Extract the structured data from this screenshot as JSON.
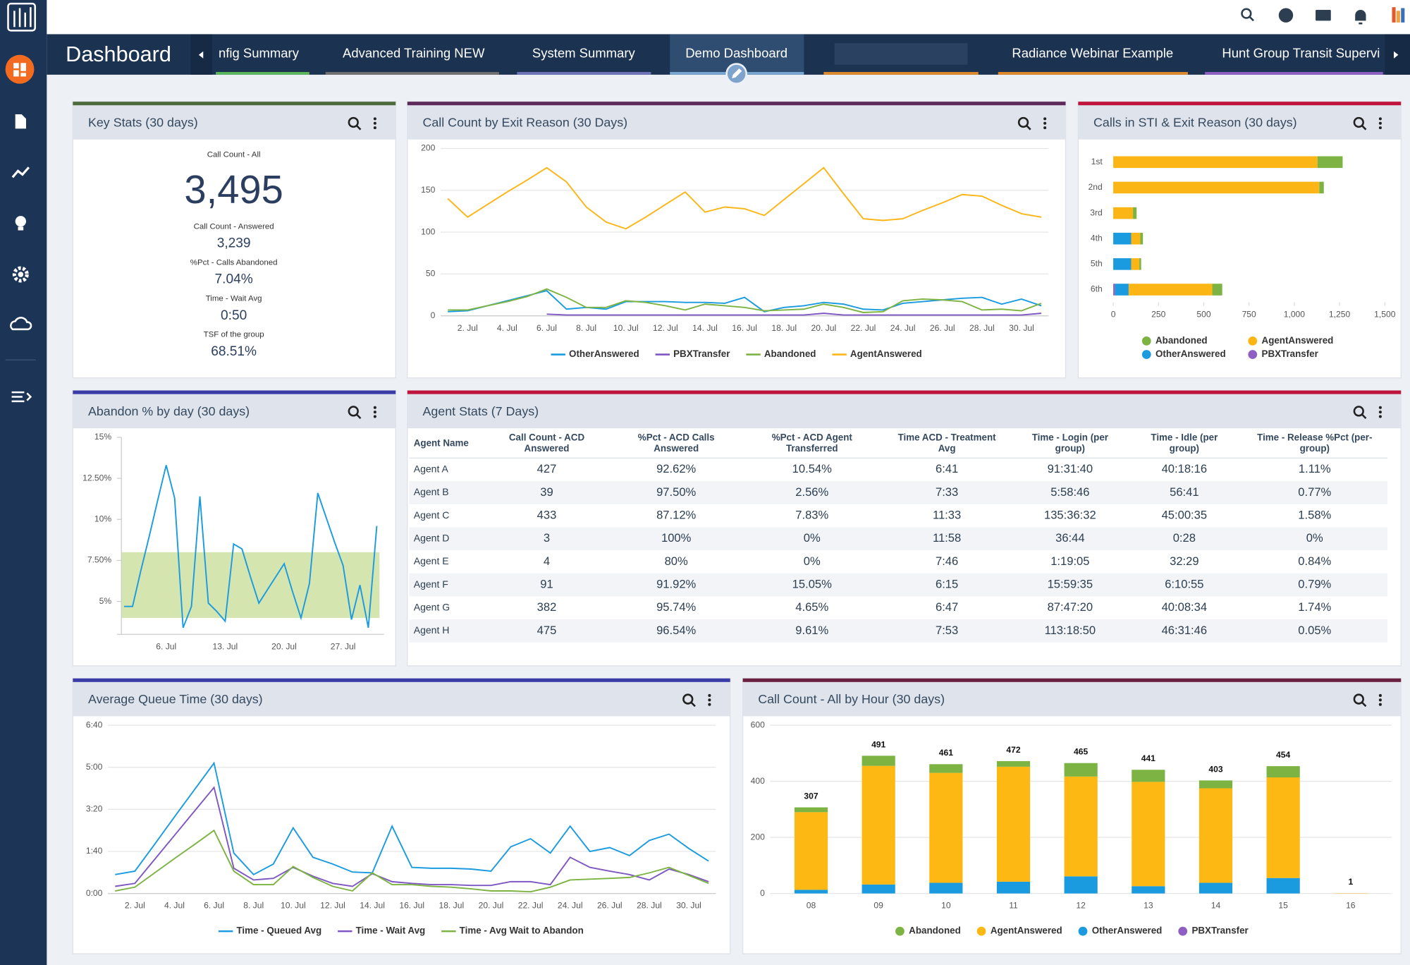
{
  "page_title": "Dashboard",
  "tabs": [
    {
      "label": "nfig Summary"
    },
    {
      "label": "Advanced Training NEW"
    },
    {
      "label": "System Summary"
    },
    {
      "label": "Demo Dashboard",
      "active": true
    },
    {
      "label": "Radiance Webinar Example"
    },
    {
      "label": "Hunt Group Transit Supervi"
    }
  ],
  "key_stats": {
    "title": "Key Stats (30 days)",
    "items": [
      {
        "label": "Call Count - All",
        "value": "3,495"
      },
      {
        "label": "Call Count - Answered",
        "value": "3,239"
      },
      {
        "label": "%Pct - Calls Abandoned",
        "value": "7.04%"
      },
      {
        "label": "Time - Wait Avg",
        "value": "0:50"
      },
      {
        "label": "TSF of the group",
        "value": "68.51%"
      }
    ]
  },
  "agent_stats": {
    "title": "Agent Stats (7 Days)",
    "columns": [
      [
        "Agent Name"
      ],
      [
        "Call Count - ACD",
        "Answered"
      ],
      [
        "%Pct - ACD Calls",
        "Answered"
      ],
      [
        "%Pct - ACD Agent",
        "Transferred"
      ],
      [
        "Time ACD - Treatment",
        "Avg"
      ],
      [
        "Time - Login (per",
        "group)"
      ],
      [
        "Time - Idle (per",
        "group)"
      ],
      [
        "Time - Release %Pct (per-",
        "group)"
      ]
    ],
    "rows": [
      [
        "Agent A",
        "427",
        "92.62%",
        "10.54%",
        "6:41",
        "91:31:40",
        "40:18:16",
        "1.11%"
      ],
      [
        "Agent B",
        "39",
        "97.50%",
        "2.56%",
        "7:33",
        "5:58:46",
        "56:41",
        "0.77%"
      ],
      [
        "Agent C",
        "433",
        "87.12%",
        "7.83%",
        "11:33",
        "135:36:32",
        "45:00:35",
        "1.58%"
      ],
      [
        "Agent D",
        "3",
        "100%",
        "0%",
        "11:58",
        "36:44",
        "0:28",
        "0%"
      ],
      [
        "Agent E",
        "4",
        "80%",
        "0%",
        "7:46",
        "1:19:05",
        "32:29",
        "0.84%"
      ],
      [
        "Agent F",
        "91",
        "91.92%",
        "15.05%",
        "6:15",
        "15:59:35",
        "6:10:55",
        "0.79%"
      ],
      [
        "Agent G",
        "382",
        "95.74%",
        "4.65%",
        "6:47",
        "87:47:20",
        "40:08:34",
        "1.74%"
      ],
      [
        "Agent H",
        "475",
        "96.54%",
        "9.61%",
        "7:53",
        "113:18:50",
        "46:31:46",
        "0.05%"
      ]
    ]
  },
  "chart_data": [
    {
      "type": "line",
      "title": "Call Count by Exit Reason (30 Days)",
      "grid": true,
      "categories": [
        null,
        "2. Jul",
        null,
        "4. Jul",
        null,
        "6. Jul",
        null,
        "8. Jul",
        null,
        "10. Jul",
        null,
        "12. Jul",
        null,
        "14. Jul",
        null,
        "16. Jul",
        null,
        "18. Jul",
        null,
        "20. Jul",
        null,
        "22. Jul",
        null,
        "24. Jul",
        null,
        "26. Jul",
        null,
        "28. Jul",
        null,
        "30. Jul",
        null
      ],
      "ylim": [
        0,
        200
      ],
      "yticks": [
        0,
        50,
        100,
        150,
        200
      ],
      "series": [
        {
          "name": "OtherAnswered",
          "color": "#1a9be0",
          "values": [
            5,
            6,
            12,
            18,
            24,
            30,
            8,
            10,
            8,
            17,
            17,
            17,
            16,
            16,
            15,
            22,
            5,
            10,
            12,
            16,
            14,
            8,
            7,
            15,
            17,
            19,
            21,
            22,
            14,
            20,
            12
          ]
        },
        {
          "name": "PBXTransfer",
          "color": "#7e57c2",
          "values": [
            null,
            null,
            null,
            null,
            null,
            2,
            1,
            1,
            1,
            1,
            1,
            1,
            1,
            1,
            1,
            1,
            1,
            1,
            1,
            3,
            1,
            1,
            1,
            1,
            1,
            1,
            1,
            1,
            1,
            1,
            3
          ]
        },
        {
          "name": "Abandoned",
          "color": "#7cb342",
          "values": [
            7,
            7,
            12,
            17,
            23,
            32,
            22,
            10,
            10,
            18,
            16,
            12,
            7,
            14,
            12,
            10,
            6,
            7,
            8,
            14,
            10,
            4,
            5,
            18,
            20,
            19,
            17,
            7,
            8,
            6,
            15
          ]
        },
        {
          "name": "AgentAnswered",
          "color": "#fbb515",
          "values": [
            140,
            118,
            133,
            148,
            162,
            177,
            160,
            130,
            112,
            104,
            118,
            133,
            148,
            124,
            130,
            128,
            120,
            139,
            158,
            177,
            146,
            116,
            114,
            116,
            126,
            135,
            145,
            143,
            132,
            122,
            118
          ]
        }
      ]
    },
    {
      "type": "hbar_stacked",
      "title": "Calls in STI & Exit Reason (30 days)",
      "grid": false,
      "categories": [
        "1st",
        "2nd",
        "3rd",
        "4th",
        "5th",
        "6th"
      ],
      "xlim": [
        0,
        1500
      ],
      "xticks": [
        0,
        250,
        500,
        750,
        {
          "value": 1000,
          "label": "1,000"
        },
        {
          "value": 1250,
          "label": "1,250"
        },
        {
          "value": 1500,
          "label": "1,500"
        }
      ],
      "series": [
        {
          "name": "Abandoned",
          "color": "#7cb342",
          "values": [
            139,
            25,
            20,
            15,
            10,
            55
          ]
        },
        {
          "name": "AgentAnswered",
          "color": "#fbb515",
          "values": [
            1128,
            1138,
            109,
            50,
            45,
            462
          ]
        },
        {
          "name": "OtherAnswered",
          "color": "#1a9be0",
          "values": [
            0,
            0,
            0,
            99,
            99,
            75
          ]
        },
        {
          "name": "PBXTransfer",
          "color": "#8e5fc2",
          "values": [
            0,
            0,
            0,
            0,
            0,
            10
          ]
        }
      ]
    },
    {
      "type": "line",
      "title": "Abandon % by day (30 days)",
      "grid": false,
      "categories": [
        null,
        null,
        null,
        null,
        null,
        "6. Jul",
        null,
        null,
        null,
        null,
        null,
        null,
        "13. Jul",
        null,
        null,
        null,
        null,
        null,
        null,
        "20. Jul",
        null,
        null,
        null,
        null,
        null,
        null,
        "27. Jul",
        null,
        null,
        null,
        null
      ],
      "ylim": [
        3,
        15
      ],
      "yticks": [
        {
          "value": 5,
          "label": "5%"
        },
        {
          "value": 7.5,
          "label": "7.50%"
        },
        {
          "value": 10,
          "label": "10%"
        },
        {
          "value": 12.5,
          "label": "12.50%"
        },
        {
          "value": 15,
          "label": "15%"
        }
      ],
      "plot_bands": [
        {
          "from": 4,
          "to": 8,
          "color": "#d4e5b0"
        }
      ],
      "series": [
        {
          "color": "#1a9be0",
          "values": [
            4.7,
            4.7,
            6.9,
            9.0,
            11.2,
            13.3,
            11.3,
            3.4,
            4.7,
            11.4,
            4.9,
            4.4,
            3.8,
            8.5,
            8.2,
            6.5,
            4.9,
            5.7,
            6.5,
            7.3,
            5.6,
            4.0,
            6.1,
            11.6,
            10.1,
            8.6,
            7.2,
            3.9,
            6.0,
            3.4,
            9.6
          ]
        }
      ]
    },
    {
      "type": "line",
      "title": "Average Queue Time (30 days)",
      "grid": true,
      "categories": [
        null,
        "2. Jul",
        null,
        "4. Jul",
        null,
        "6. Jul",
        null,
        "8. Jul",
        null,
        "10. Jul",
        null,
        "12. Jul",
        null,
        "14. Jul",
        null,
        "16. Jul",
        null,
        "18. Jul",
        null,
        "20. Jul",
        null,
        "22. Jul",
        null,
        "24. Jul",
        null,
        "26. Jul",
        null,
        "28. Jul",
        null,
        "30. Jul",
        null
      ],
      "ylim": [
        0,
        400
      ],
      "yticks": [
        {
          "value": 0,
          "label": "0:00"
        },
        {
          "value": 100,
          "label": "1:40"
        },
        {
          "value": 200,
          "label": "3:20"
        },
        {
          "value": 300,
          "label": "5:00"
        },
        {
          "value": 400,
          "label": "6:40"
        }
      ],
      "series": [
        {
          "name": "Time - Queued Avg",
          "color": "#1a9be0",
          "values": [
            45,
            53,
            117,
            182,
            246,
            310,
            96,
            45,
            70,
            156,
            86,
            70,
            51,
            49,
            160,
            62,
            60,
            60,
            58,
            53,
            111,
            130,
            96,
            160,
            100,
            109,
            90,
            126,
            141,
            107,
            77
          ]
        },
        {
          "name": "Time - Wait Avg",
          "color": "#7e57c2",
          "values": [
            17,
            24,
            81,
            138,
            195,
            252,
            60,
            32,
            36,
            62,
            41,
            24,
            17,
            47,
            28,
            24,
            21,
            21,
            19,
            19,
            28,
            28,
            21,
            86,
            62,
            53,
            45,
            32,
            58,
            45,
            28
          ]
        },
        {
          "name": "Time - Avg Wait to Abandon",
          "color": "#7cb342",
          "values": [
            6,
            15,
            49,
            83,
            116,
            150,
            53,
            21,
            21,
            64,
            38,
            17,
            6,
            49,
            21,
            21,
            17,
            15,
            11,
            6,
            6,
            4,
            15,
            32,
            34,
            36,
            38,
            49,
            62,
            43,
            24
          ]
        }
      ]
    },
    {
      "type": "vbar_stacked",
      "title": "Call Count - All by Hour (30 days)",
      "grid": true,
      "categories": [
        "08",
        "09",
        "10",
        "11",
        "12",
        "13",
        "14",
        "15",
        "16"
      ],
      "ylim": [
        0,
        600
      ],
      "yticks": [
        0,
        200,
        400,
        600
      ],
      "totals": [
        307,
        491,
        461,
        472,
        465,
        441,
        403,
        454,
        1
      ],
      "series": [
        {
          "name": "Abandoned",
          "color": "#7cb342",
          "values": [
            17,
            36,
            31,
            20,
            48,
            43,
            28,
            40,
            0
          ]
        },
        {
          "name": "AgentAnswered",
          "color": "#fdb813",
          "values": [
            277,
            423,
            392,
            410,
            356,
            372,
            337,
            359,
            1
          ]
        },
        {
          "name": "OtherAnswered",
          "color": "#1a9be0",
          "values": [
            13,
            32,
            38,
            42,
            61,
            26,
            38,
            55,
            0
          ]
        },
        {
          "name": "PBXTransfer",
          "color": "#8e5fc2",
          "values": [
            0,
            0,
            0,
            0,
            0,
            0,
            0,
            0,
            0
          ]
        }
      ]
    }
  ]
}
